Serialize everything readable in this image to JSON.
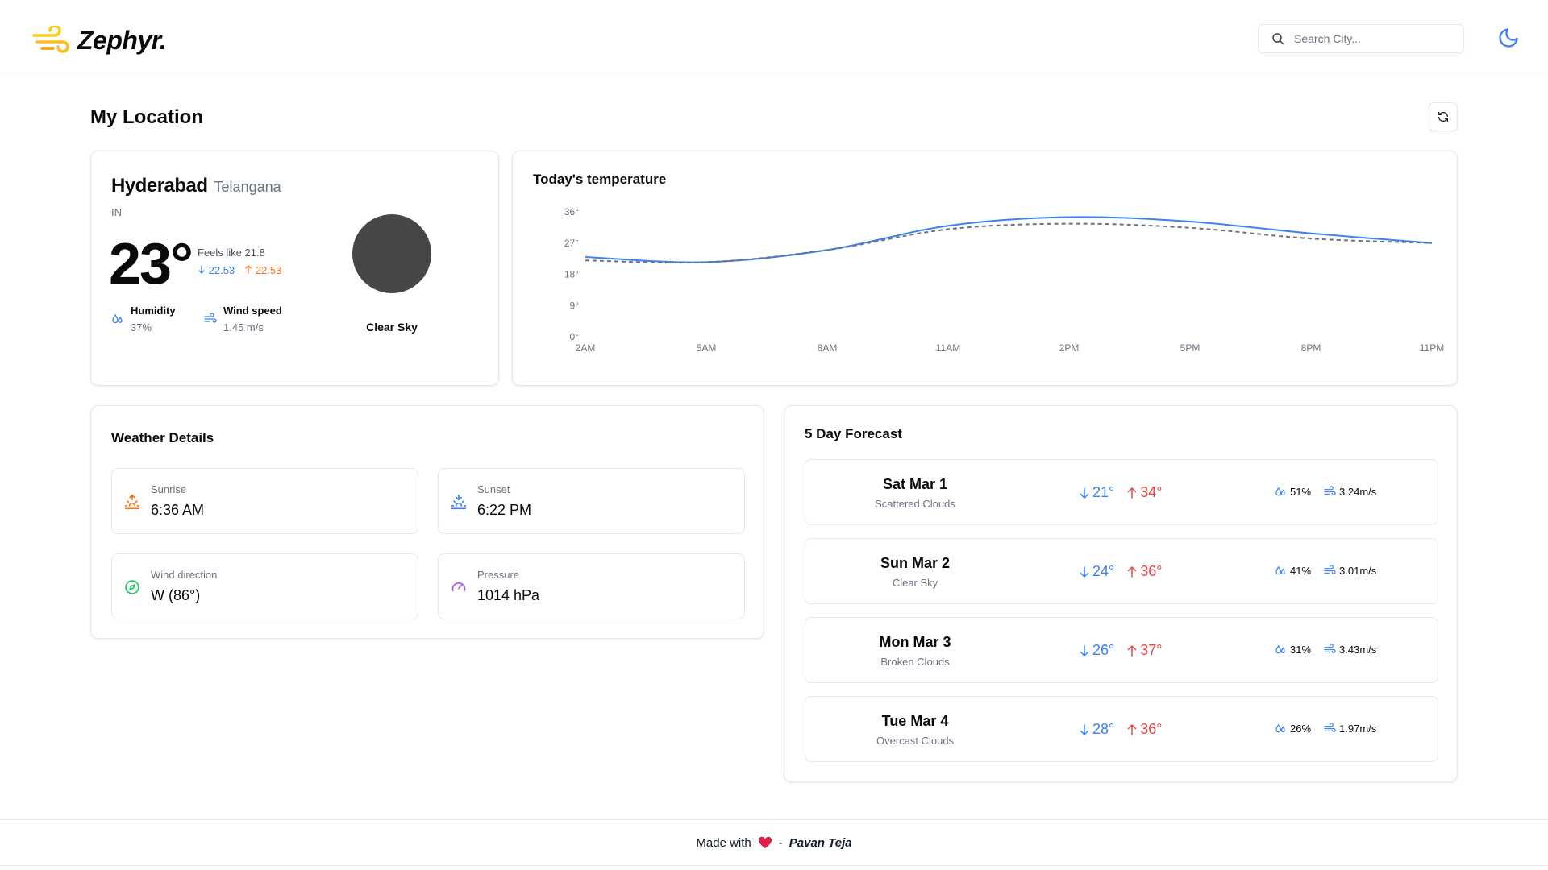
{
  "header": {
    "app_name": "Zephyr.",
    "logo_icon": "wind-icon",
    "search_placeholder": "Search City...",
    "theme_icon": "moon-icon"
  },
  "page_title": "My Location",
  "current": {
    "city": "Hyderabad",
    "state": "Telangana",
    "country": "IN",
    "temperature": "23°",
    "feels_like": "Feels like 21.8",
    "temp_min": "22.53",
    "temp_max": "22.53",
    "humidity_label": "Humidity",
    "humidity_value": "37%",
    "wind_label": "Wind speed",
    "wind_value": "1.45 m/s",
    "description": "Clear Sky"
  },
  "chart_data": {
    "type": "line",
    "title": "Today's temperature",
    "categories": [
      "2AM",
      "5AM",
      "8AM",
      "11AM",
      "2PM",
      "5PM",
      "8PM",
      "11PM"
    ],
    "y_ticks": [
      "0°",
      "9°",
      "18°",
      "27°",
      "36°"
    ],
    "ylim": [
      0,
      36
    ],
    "series": [
      {
        "style": "solid",
        "color": "#3b82f6",
        "values": [
          23.0,
          21.5,
          25.0,
          32.0,
          34.5,
          33.2,
          29.8,
          27.0
        ]
      },
      {
        "style": "dashed",
        "color": "#6b7280",
        "values": [
          22.0,
          21.5,
          25.0,
          31.0,
          32.6,
          31.4,
          28.3,
          27.0
        ]
      }
    ],
    "grid": false
  },
  "details": {
    "title": "Weather Details",
    "items": [
      {
        "label": "Sunrise",
        "value": "6:36 AM",
        "icon": "sunrise-icon",
        "color": "#f97316"
      },
      {
        "label": "Sunset",
        "value": "6:22 PM",
        "icon": "sunset-icon",
        "color": "#3b82f6"
      },
      {
        "label": "Wind direction",
        "value": "W (86°)",
        "icon": "compass-icon",
        "color": "#22c55e"
      },
      {
        "label": "Pressure",
        "value": "1014 hPa",
        "icon": "gauge-icon",
        "color": "#a855f7"
      }
    ]
  },
  "forecast": {
    "title": "5 Day Forecast",
    "days": [
      {
        "day": "Sat Mar 1",
        "desc": "Scattered Clouds",
        "min": "21°",
        "max": "34°",
        "humidity": "51%",
        "wind": "3.24m/s"
      },
      {
        "day": "Sun Mar 2",
        "desc": "Clear Sky",
        "min": "24°",
        "max": "36°",
        "humidity": "41%",
        "wind": "3.01m/s"
      },
      {
        "day": "Mon Mar 3",
        "desc": "Broken Clouds",
        "min": "26°",
        "max": "37°",
        "humidity": "31%",
        "wind": "3.43m/s"
      },
      {
        "day": "Tue Mar 4",
        "desc": "Overcast Clouds",
        "min": "28°",
        "max": "36°",
        "humidity": "26%",
        "wind": "1.97m/s"
      }
    ]
  },
  "footer": {
    "made_with": "Made with",
    "separator": "-",
    "author": "Pavan Teja",
    "heart_color": "#e11d48"
  }
}
